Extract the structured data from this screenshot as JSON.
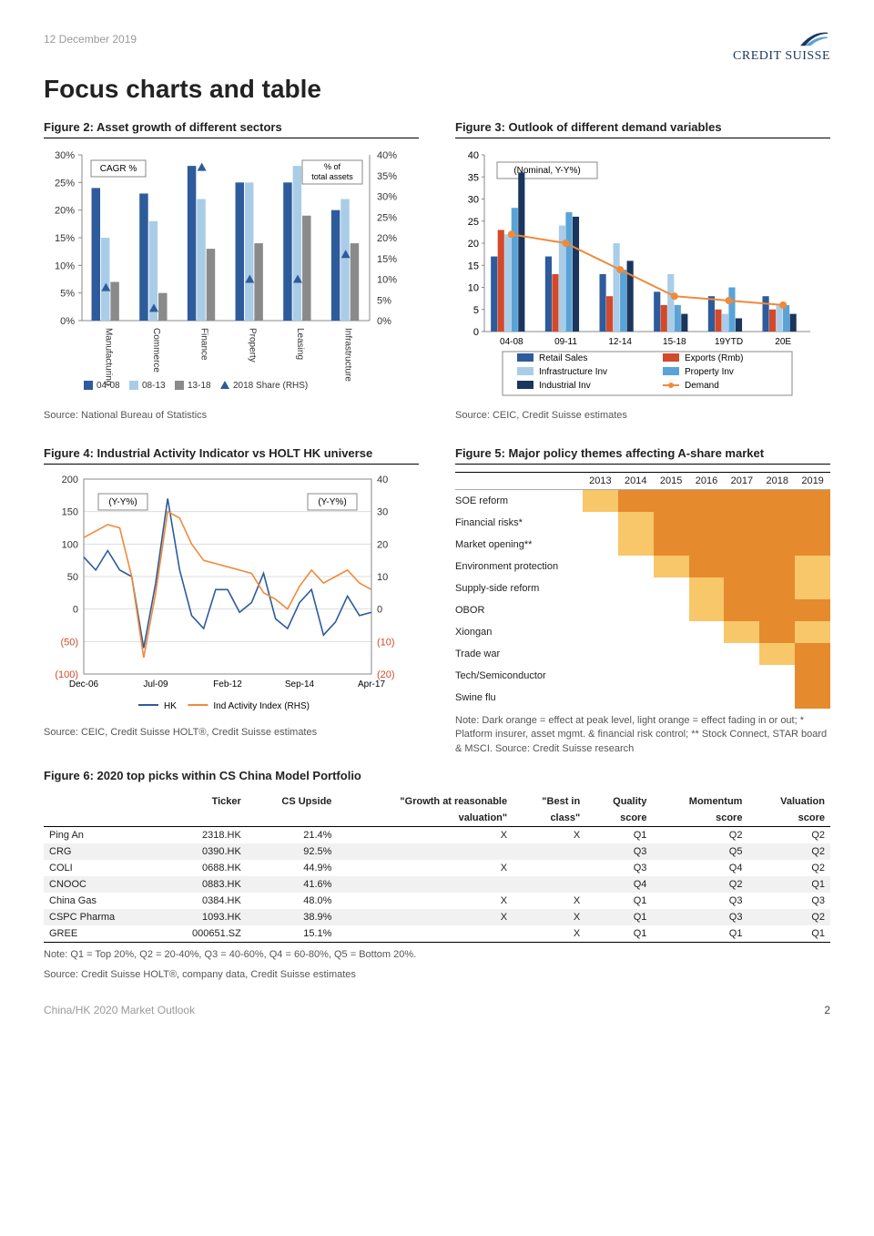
{
  "header": {
    "date": "12 December 2019",
    "brand": "CREDIT SUISSE"
  },
  "title": "Focus charts and table",
  "fig2": {
    "title": "Figure 2: Asset growth of different sectors",
    "source": "Source: National Bureau of Statistics",
    "type": "bar+scatter dual-axis",
    "box_labels": {
      "left": "CAGR %",
      "right": "% of\ntotal assets"
    },
    "y_left": {
      "min": 0,
      "max": 30,
      "step": 5,
      "fmt": "pct"
    },
    "y_right": {
      "min": 0,
      "max": 40,
      "step": 5,
      "fmt": "pct"
    },
    "categories": [
      "Manufacturing",
      "Commerce",
      "Finance",
      "Property",
      "Leasing",
      "Infrastructure"
    ],
    "series": [
      {
        "name": "04-08",
        "color": "#2e5b9b",
        "values": [
          24,
          23,
          28,
          25,
          25,
          20
        ]
      },
      {
        "name": "08-13",
        "color": "#a9cde8",
        "values": [
          15,
          18,
          22,
          25,
          28,
          22
        ]
      },
      {
        "name": "13-18",
        "color": "#8a8a8a",
        "values": [
          7,
          5,
          13,
          14,
          19,
          14
        ]
      }
    ],
    "scatter": {
      "name": "2018 Share (RHS)",
      "color": "#2e5b9b",
      "marker": "triangle",
      "values": [
        8,
        3,
        37,
        10,
        10,
        16
      ]
    },
    "legend": [
      "04-08",
      "08-13",
      "13-18",
      "2018 Share (RHS)"
    ],
    "bg": "#ffffff",
    "axis_color": "#888"
  },
  "fig3": {
    "title": "Figure 3: Outlook of different demand variables",
    "source": "Source: CEIC, Credit Suisse estimates",
    "type": "bar+line",
    "box_label": "(Nominal, Y-Y%)",
    "y": {
      "min": 0,
      "max": 40,
      "step": 5
    },
    "categories": [
      "04-08",
      "09-11",
      "12-14",
      "15-18",
      "19YTD",
      "20E"
    ],
    "bars": [
      {
        "name": "Retail Sales",
        "color": "#2e5b9b",
        "values": [
          17,
          17,
          13,
          9,
          8,
          8
        ]
      },
      {
        "name": "Exports (Rmb)",
        "color": "#d24a2b",
        "values": [
          23,
          13,
          8,
          6,
          5,
          5
        ]
      },
      {
        "name": "Infrastructure Inv",
        "color": "#a9cde8",
        "values": [
          22,
          24,
          20,
          13,
          4,
          6
        ]
      },
      {
        "name": "Property Inv",
        "color": "#5aa3d6",
        "values": [
          28,
          27,
          14,
          6,
          10,
          6
        ]
      },
      {
        "name": "Industrial Inv",
        "color": "#1b365d",
        "values": [
          36,
          26,
          16,
          4,
          3,
          4
        ]
      }
    ],
    "line": {
      "name": "Demand",
      "color": "#f08a3a",
      "marker": "circle",
      "values": [
        22,
        20,
        14,
        8,
        7,
        6
      ]
    },
    "legend": [
      "Retail Sales",
      "Exports (Rmb)",
      "Infrastructure Inv",
      "Property Inv",
      "Industrial Inv",
      "Demand"
    ],
    "bg": "#ffffff",
    "axis_color": "#888"
  },
  "fig4": {
    "title": "Figure 4: Industrial Activity Indicator vs HOLT HK universe",
    "source": "Source: CEIC, Credit Suisse HOLT®, Credit Suisse estimates",
    "type": "dual-line",
    "box_label_left": "(Y-Y%)",
    "box_label_right": "(Y-Y%)",
    "y_left": {
      "min": -100,
      "max": 200,
      "step": 50
    },
    "y_right": {
      "min": -20,
      "max": 40,
      "step": 10
    },
    "x_labels": [
      "Dec-06",
      "Jul-09",
      "Feb-12",
      "Sep-14",
      "Apr-17"
    ],
    "series": [
      {
        "name": "HK",
        "color": "#2e5b9b",
        "axis": "left",
        "values": [
          80,
          60,
          90,
          60,
          50,
          -60,
          40,
          170,
          60,
          -10,
          -30,
          30,
          30,
          -5,
          10,
          55,
          -15,
          -30,
          10,
          30,
          -40,
          -20,
          20,
          -10,
          -5
        ]
      },
      {
        "name": "Ind Activity Index (RHS)",
        "color": "#f08a3a",
        "axis": "right",
        "values": [
          22,
          24,
          26,
          25,
          10,
          -15,
          5,
          30,
          28,
          20,
          15,
          14,
          13,
          12,
          11,
          5,
          3,
          0,
          7,
          12,
          8,
          10,
          12,
          8,
          6
        ]
      }
    ],
    "legend": [
      "HK",
      "Ind Activity Index (RHS)"
    ],
    "bg": "#ffffff",
    "axis_color": "#888"
  },
  "fig5": {
    "title": "Figure 5: Major policy themes affecting A-share market",
    "note": "Note: Dark orange = effect at peak level, light orange = effect fading in or out; * Platform insurer, asset mgmt. & financial risk control; ** Stock Connect, STAR board & MSCI. Source: Credit Suisse research",
    "years": [
      "2013",
      "2014",
      "2015",
      "2016",
      "2017",
      "2018",
      "2019"
    ],
    "rows": [
      {
        "label": "SOE reform",
        "cells": [
          "light",
          "dark",
          "dark",
          "dark",
          "dark",
          "dark",
          "dark"
        ]
      },
      {
        "label": "Financial risks*",
        "cells": [
          "",
          "light",
          "dark",
          "dark",
          "dark",
          "dark",
          "dark"
        ]
      },
      {
        "label": "Market opening**",
        "cells": [
          "",
          "light",
          "dark",
          "dark",
          "dark",
          "dark",
          "dark"
        ]
      },
      {
        "label": "Environment protection",
        "cells": [
          "",
          "",
          "light",
          "dark",
          "dark",
          "dark",
          "light"
        ]
      },
      {
        "label": "Supply-side reform",
        "cells": [
          "",
          "",
          "",
          "light",
          "dark",
          "dark",
          "light"
        ]
      },
      {
        "label": "OBOR",
        "cells": [
          "",
          "",
          "",
          "light",
          "dark",
          "dark",
          "dark"
        ]
      },
      {
        "label": "Xiongan",
        "cells": [
          "",
          "",
          "",
          "",
          "light",
          "dark",
          "light"
        ]
      },
      {
        "label": "Trade war",
        "cells": [
          "",
          "",
          "",
          "",
          "",
          "light",
          "dark"
        ]
      },
      {
        "label": "Tech/Semiconductor",
        "cells": [
          "",
          "",
          "",
          "",
          "",
          "",
          "dark"
        ]
      },
      {
        "label": "Swine flu",
        "cells": [
          "",
          "",
          "",
          "",
          "",
          "",
          "dark"
        ]
      }
    ],
    "colors": {
      "dark": "#e58a2d",
      "light": "#f7c76a"
    }
  },
  "fig6": {
    "title": "Figure 6: 2020 top picks within CS China Model Portfolio",
    "columns": [
      "",
      "Ticker",
      "CS Upside",
      "\"Growth at reasonable valuation\"",
      "\"Best in class\"",
      "Quality score",
      "Momentum score",
      "Valuation score"
    ],
    "col_headers_top": [
      "",
      "Ticker",
      "CS Upside",
      "\"Growth at reasonable",
      "\"Best in",
      "Quality",
      "Momentum",
      "Valuation"
    ],
    "col_headers_bot": [
      "",
      "",
      "",
      "valuation\"",
      "class\"",
      "score",
      "score",
      "score"
    ],
    "rows": [
      [
        "Ping An",
        "2318.HK",
        "21.4%",
        "X",
        "X",
        "Q1",
        "Q2",
        "Q2"
      ],
      [
        "CRG",
        "0390.HK",
        "92.5%",
        "",
        "",
        "Q3",
        "Q5",
        "Q2"
      ],
      [
        "COLI",
        "0688.HK",
        "44.9%",
        "X",
        "",
        "Q3",
        "Q4",
        "Q2"
      ],
      [
        "CNOOC",
        "0883.HK",
        "41.6%",
        "",
        "",
        "Q4",
        "Q2",
        "Q1"
      ],
      [
        "China Gas",
        "0384.HK",
        "48.0%",
        "X",
        "X",
        "Q1",
        "Q3",
        "Q3"
      ],
      [
        "CSPC Pharma",
        "1093.HK",
        "38.9%",
        "X",
        "X",
        "Q1",
        "Q3",
        "Q2"
      ],
      [
        "GREE",
        "000651.SZ",
        "15.1%",
        "",
        "X",
        "Q1",
        "Q1",
        "Q1"
      ]
    ],
    "alt_rows": [
      1,
      3,
      5
    ],
    "note1": "Note: Q1 = Top 20%, Q2 = 20-40%, Q3 = 40-60%, Q4 = 60-80%, Q5 = Bottom 20%.",
    "note2": "Source: Credit Suisse HOLT®, company data, Credit Suisse estimates"
  },
  "footer": {
    "left": "China/HK 2020 Market Outlook",
    "page": "2"
  }
}
